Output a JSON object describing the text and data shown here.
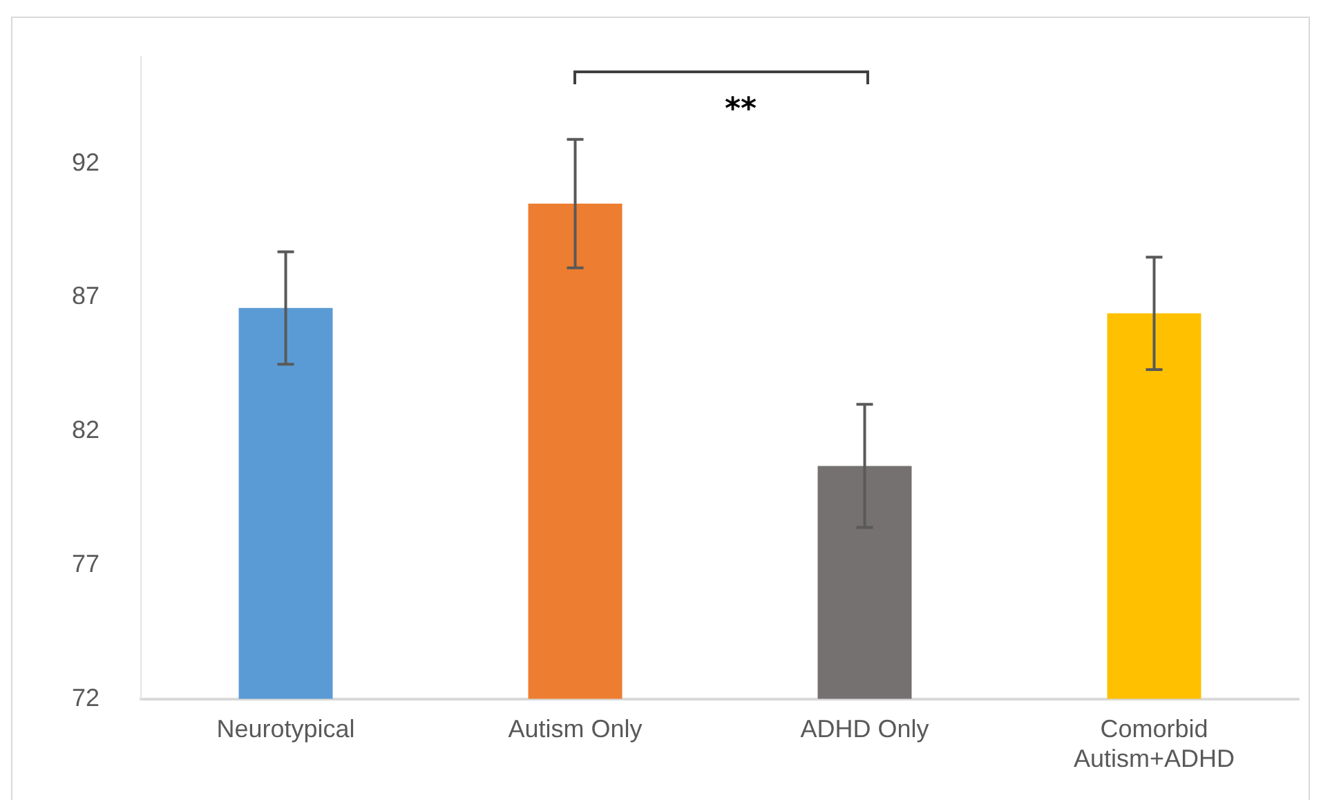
{
  "chart_data": {
    "type": "bar",
    "categories": [
      "Neurotypical",
      "Autism Only",
      "ADHD Only",
      "Comorbid Autism+ADHD"
    ],
    "values": [
      86.6,
      90.5,
      80.7,
      86.4
    ],
    "colors": [
      "#5b9bd5",
      "#ed7d31",
      "#757171",
      "#ffc000"
    ],
    "errors": [
      2.1,
      2.4,
      2.3,
      2.1
    ],
    "ylim": [
      72,
      96
    ],
    "yticks": [
      72,
      77,
      82,
      87,
      92
    ],
    "grid": false,
    "legend": false,
    "annotations": [
      "**"
    ]
  }
}
